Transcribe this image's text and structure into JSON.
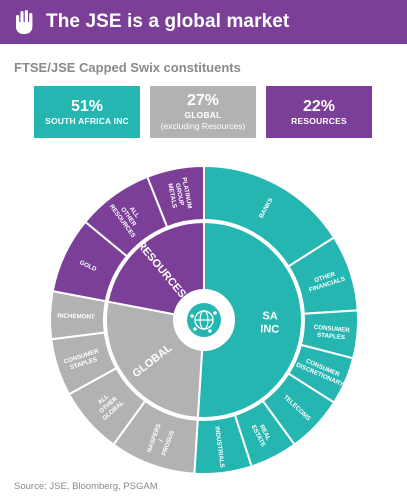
{
  "header": {
    "title": "The JSE is a global market"
  },
  "subtitle": "FTSE/JSE Capped Swix constituents",
  "boxes": {
    "sa": {
      "pct": "51%",
      "label": "SOUTH AFRICA INC"
    },
    "global": {
      "pct": "27%",
      "label": "GLOBAL",
      "sublabel": "(excluding Resources)"
    },
    "resources": {
      "pct": "22%",
      "label": "RESOURCES"
    }
  },
  "source": "Source:  JSE, Bloomberg, PSGAM",
  "colors": {
    "teal": "#26b6b2",
    "grey": "#b1b2b4",
    "purple": "#7b3f98"
  },
  "icons": {
    "header": "hand-icon",
    "center": "globe-icon"
  },
  "chart_data": {
    "type": "sunburst",
    "inner": [
      {
        "label": "SA INC",
        "value": 51,
        "color": "#26b6b2"
      },
      {
        "label": "GLOBAL",
        "value": 27,
        "color": "#b1b2b4"
      },
      {
        "label": "RESOURCES",
        "value": 22,
        "color": "#7b3f98"
      }
    ],
    "outer": [
      {
        "label": "BANKS",
        "parent": "SA INC",
        "value": 16
      },
      {
        "label": "OTHER FINANCIALS",
        "parent": "SA INC",
        "value": 8
      },
      {
        "label": "CONSUMER STAPLES",
        "parent": "SA INC",
        "value": 5
      },
      {
        "label": "CONSUMER DISCRETIONARY",
        "parent": "SA INC",
        "value": 5
      },
      {
        "label": "TELECOMS",
        "parent": "SA INC",
        "value": 6
      },
      {
        "label": "REAL ESTATE",
        "parent": "SA INC",
        "value": 5
      },
      {
        "label": "INDUSTRIALS",
        "parent": "SA INC",
        "value": 6
      },
      {
        "label": "NASPERS / PROSUS",
        "parent": "GLOBAL",
        "value": 9
      },
      {
        "label": "ALL OTHER GLOBAL",
        "parent": "GLOBAL",
        "value": 7
      },
      {
        "label": "CONSUMER STAPLES",
        "parent": "GLOBAL",
        "value": 6
      },
      {
        "label": "RICHEMONT",
        "parent": "GLOBAL",
        "value": 5
      },
      {
        "label": "GOLD",
        "parent": "RESOURCES",
        "value": 8
      },
      {
        "label": "ALL OTHER RESOURCES",
        "parent": "RESOURCES",
        "value": 8
      },
      {
        "label": "PLATINUM GROUP METALS",
        "parent": "RESOURCES",
        "value": 6
      }
    ]
  }
}
